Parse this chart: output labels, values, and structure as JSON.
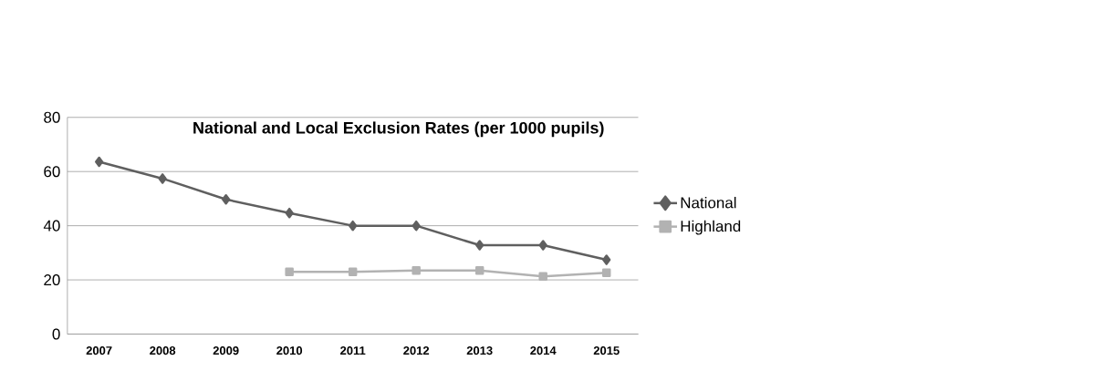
{
  "chart_data": {
    "type": "line",
    "title": "National and Local Exclusion Rates (per 1000 pupils)",
    "categories": [
      "2007",
      "2008",
      "2009",
      "2010",
      "2011",
      "2012",
      "2013",
      "2014",
      "2015"
    ],
    "series": [
      {
        "name": "National",
        "color": "#5f5f5f",
        "marker": "diamond",
        "values": [
          63.6,
          57.4,
          49.7,
          44.7,
          40,
          40,
          32.8,
          32.8,
          27.4
        ]
      },
      {
        "name": "Highland",
        "color": "#b2b2b2",
        "marker": "square",
        "values": [
          null,
          null,
          null,
          23,
          23,
          23.5,
          23.5,
          21.3,
          22.6
        ]
      }
    ],
    "ylim": [
      0,
      80
    ],
    "yticks": [
      0,
      20,
      40,
      60,
      80
    ],
    "grid": "y",
    "legend": "right"
  }
}
